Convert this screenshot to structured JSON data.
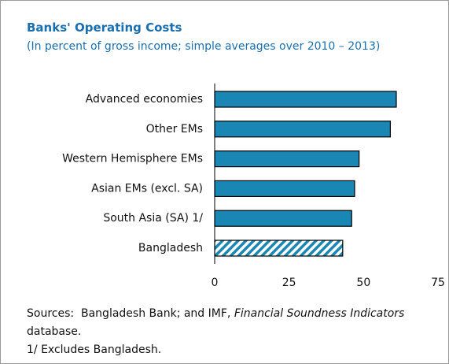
{
  "chart_data": {
    "type": "barh",
    "title": "Banks' Operating Costs",
    "subtitle": "(In percent of gross income; simple averages over 2010 – 2013)",
    "categories": [
      "Advanced economies",
      "Other EMs",
      "Western Hemisphere EMs",
      "Asian EMs (excl. SA)",
      "South Asia (SA) 1/",
      "Bangladesh"
    ],
    "values": [
      61,
      59,
      48.5,
      47,
      46,
      43
    ],
    "color": "#1a86b4",
    "bar_styles": [
      "solid",
      "solid",
      "solid",
      "solid",
      "solid",
      "hatched"
    ],
    "xlim": [
      0,
      75
    ],
    "xticks": [
      0,
      25,
      50,
      75
    ],
    "grid": false,
    "source": {
      "prefix": "Sources:  Bangladesh Bank; and IMF, ",
      "italic": "Financial Soundness Indicators",
      "suffix": " database."
    },
    "note": "1/ Excludes Bangladesh."
  }
}
